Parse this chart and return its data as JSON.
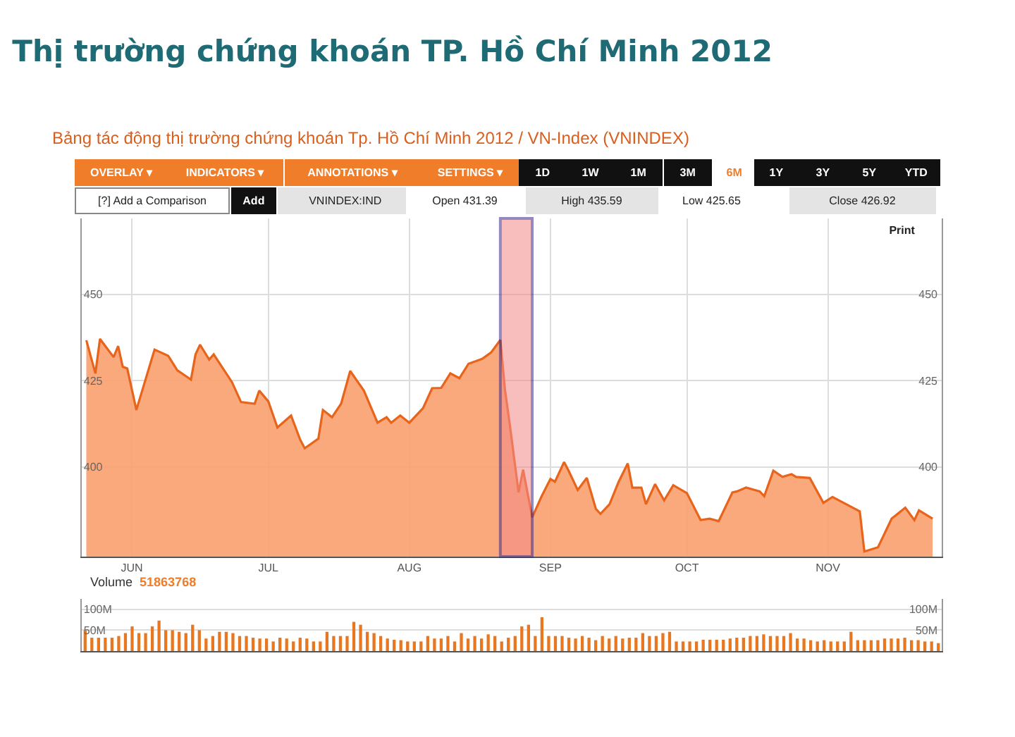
{
  "chart_data": [
    {
      "type": "area",
      "title": "Thị trường chứng khoán TP. Hồ Chí Minh 2012",
      "subtitle": "Bảng tác động thị trường chứng khoán Tp. Hồ Chí Minh 2012 / VN-Index (VNINDEX)",
      "annotations": [
        "OVERLAY ▾",
        "INDICATORS ▾",
        "ANNOTATIONS ▾",
        "SETTINGS ▾",
        "1D",
        "1W",
        "1M",
        "3M",
        "6M",
        "1Y",
        "3Y",
        "5Y",
        "YTD",
        "[?] Add a Comparison",
        "Add",
        "VNINDEX:IND",
        "Open 431.39",
        "High 435.59",
        "Low 425.65",
        "Close 426.92",
        "Print"
      ],
      "x": [
        "2012-05-22",
        "2012-05-24",
        "2012-05-25",
        "2012-05-28",
        "2012-05-29",
        "2012-05-30",
        "2012-05-31",
        "2012-06-02",
        "2012-06-06",
        "2012-06-09",
        "2012-06-11",
        "2012-06-14",
        "2012-06-15",
        "2012-06-16",
        "2012-06-18",
        "2012-06-19",
        "2012-06-23",
        "2012-06-25",
        "2012-06-28",
        "2012-06-29",
        "2012-07-01",
        "2012-07-03",
        "2012-07-06",
        "2012-07-08",
        "2012-07-09",
        "2012-07-12",
        "2012-07-13",
        "2012-07-15",
        "2012-07-17",
        "2012-07-19",
        "2012-07-22",
        "2012-07-25",
        "2012-07-27",
        "2012-07-28",
        "2012-07-30",
        "2012-08-01",
        "2012-08-04",
        "2012-08-06",
        "2012-08-08",
        "2012-08-10",
        "2012-08-12",
        "2012-08-14",
        "2012-08-17",
        "2012-08-19",
        "2012-08-21",
        "2012-08-22",
        "2012-08-23",
        "2012-08-25",
        "2012-08-26",
        "2012-08-28",
        "2012-08-30",
        "2012-09-01",
        "2012-09-02",
        "2012-09-04",
        "2012-09-05",
        "2012-09-07",
        "2012-09-09",
        "2012-09-11",
        "2012-09-12",
        "2012-09-14",
        "2012-09-16",
        "2012-09-18",
        "2012-09-19",
        "2012-09-21",
        "2012-09-22",
        "2012-09-24",
        "2012-09-26",
        "2012-09-28",
        "2012-10-01",
        "2012-10-04",
        "2012-10-06",
        "2012-10-08",
        "2012-10-11",
        "2012-10-12",
        "2012-10-14",
        "2012-10-17",
        "2012-10-18",
        "2012-10-20",
        "2012-10-22",
        "2012-10-24",
        "2012-10-25",
        "2012-10-28",
        "2012-10-31",
        "2012-11-02",
        "2012-11-04",
        "2012-11-07",
        "2012-11-08",
        "2012-11-09",
        "2012-11-12",
        "2012-11-15",
        "2012-11-18",
        "2012-11-20",
        "2012-11-21",
        "2012-11-24"
      ],
      "values": [
        436.7,
        427.1,
        437.1,
        431.8,
        435,
        429,
        428.5,
        416.5,
        434,
        432.2,
        428,
        425.3,
        432.6,
        435.4,
        431.1,
        432.6,
        424.6,
        418.8,
        418.3,
        422.1,
        419,
        411.4,
        414.9,
        407.9,
        405.4,
        408.2,
        416.5,
        414.4,
        418.3,
        427.8,
        422.1,
        412.8,
        414.4,
        412.8,
        414.9,
        412.8,
        417,
        422.8,
        422.9,
        427.1,
        425.7,
        429.9,
        431.3,
        433.2,
        436.8,
        422.5,
        413,
        392.6,
        399.2,
        385.4,
        391.3,
        396.5,
        395.7,
        401.4,
        398.9,
        393.3,
        396.8,
        387.8,
        386.4,
        389.2,
        395.7,
        401,
        394,
        394,
        389.2,
        395,
        390.3,
        394.7,
        392.4,
        384.6,
        385,
        384.3,
        392.6,
        392.9,
        394,
        392.9,
        391.5,
        398.9,
        397.1,
        397.9,
        397.1,
        396.8,
        389.6,
        391.3,
        389.9,
        387.8,
        387.1,
        375.5,
        376.7,
        385,
        388.2,
        384.6,
        387.4,
        385
      ],
      "color": "#e8641b",
      "xlim": [
        "2012-05-21",
        "2012-11-26"
      ],
      "xticks": [
        {
          "value": "2012-06-01",
          "label": "JUN"
        },
        {
          "value": "2012-07-01",
          "label": "JUL"
        },
        {
          "value": "2012-08-01",
          "label": "AUG"
        },
        {
          "value": "2012-09-01",
          "label": "SEP"
        },
        {
          "value": "2012-10-01",
          "label": "OCT"
        },
        {
          "value": "2012-11-01",
          "label": "NOV"
        }
      ],
      "ylim": [
        374,
        472
      ],
      "yticks": [
        400,
        425,
        450
      ],
      "y2lim": [
        374,
        472
      ],
      "y2ticks": [
        400,
        425,
        450
      ],
      "grid": true,
      "bands": [
        {
          "axis": "x",
          "from": "2012-08-21",
          "to": "2012-08-28",
          "color": "#f48a8a"
        }
      ]
    },
    {
      "type": "bar",
      "title": "Volume 51863768",
      "categories": [
        null,
        null,
        null,
        null,
        null,
        null,
        null,
        null,
        null,
        null,
        null,
        null,
        null,
        null,
        null,
        null,
        null,
        null,
        null,
        null,
        null,
        null,
        null,
        null,
        null,
        null,
        null,
        null,
        null,
        null,
        null,
        null,
        null,
        null,
        null,
        null,
        null,
        null,
        null,
        null,
        null,
        null,
        null,
        null,
        null,
        null,
        null,
        null,
        null,
        null,
        null,
        null,
        null,
        null,
        null,
        null,
        null,
        null,
        null,
        null,
        null,
        null,
        null,
        null,
        null,
        null,
        null,
        null,
        null,
        null,
        null,
        null,
        null,
        null,
        null,
        null,
        null,
        null,
        null,
        null,
        null,
        null,
        null,
        null,
        null,
        null,
        null,
        null,
        null,
        null,
        null,
        null,
        null,
        null,
        null,
        null,
        null,
        null,
        null,
        null,
        null,
        null,
        null,
        null,
        null,
        null,
        null,
        null,
        null,
        null,
        null,
        null,
        null,
        null,
        null,
        null,
        null,
        null,
        null,
        null,
        null,
        null,
        null,
        null,
        null,
        null,
        null,
        null
      ],
      "values": [
        50,
        32,
        32,
        32,
        32,
        36,
        43,
        59,
        43,
        43,
        59,
        73,
        50,
        50,
        46,
        43,
        63,
        50,
        30,
        36,
        46,
        46,
        43,
        36,
        36,
        32,
        30,
        30,
        23,
        32,
        30,
        23,
        32,
        30,
        23,
        23,
        46,
        36,
        36,
        36,
        70,
        63,
        46,
        43,
        36,
        30,
        27,
        26,
        23,
        23,
        23,
        36,
        30,
        30,
        36,
        23,
        43,
        30,
        36,
        30,
        40,
        36,
        23,
        32,
        36,
        59,
        63,
        36,
        81,
        36,
        36,
        36,
        32,
        30,
        36,
        32,
        26,
        36,
        30,
        36,
        30,
        32,
        32,
        43,
        36,
        36,
        43,
        46,
        23,
        23,
        23,
        23,
        27,
        27,
        27,
        27,
        30,
        32,
        32,
        36,
        36,
        40,
        36,
        36,
        36,
        43,
        30,
        30,
        26,
        23,
        26,
        23,
        23,
        23,
        46,
        26,
        26,
        26,
        26,
        30,
        30,
        30,
        32,
        26,
        26,
        23,
        23,
        19
      ],
      "color": "#e87722",
      "ylim": [
        0,
        125
      ],
      "yticks": [
        {
          "value": 50,
          "label": "50M"
        },
        {
          "value": 100,
          "label": "100M"
        }
      ],
      "y2lim": [
        0,
        125
      ],
      "y2ticks": [
        {
          "value": 50,
          "label": "50M"
        },
        {
          "value": 100,
          "label": "100M"
        }
      ],
      "grid": "y",
      "tick_labels": "y"
    }
  ]
}
